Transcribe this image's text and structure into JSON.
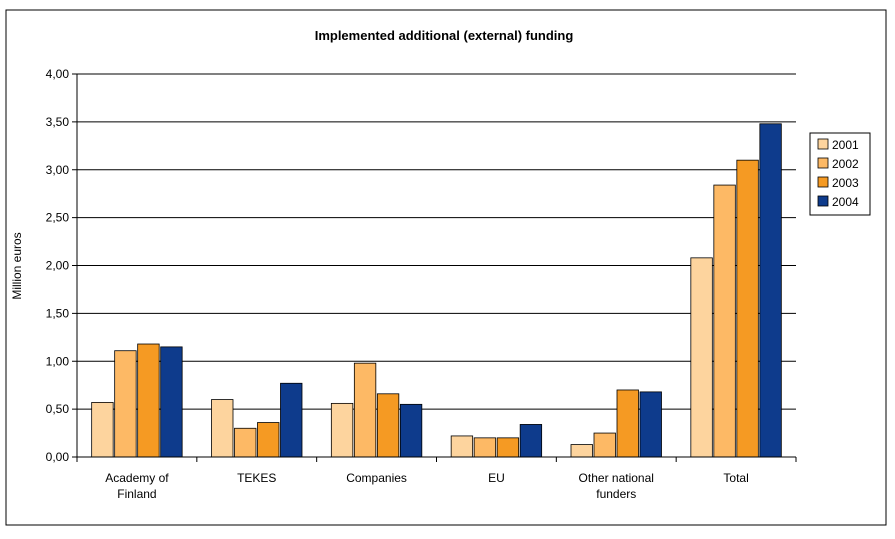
{
  "chart_data": {
    "type": "bar",
    "title": "Implemented additional (external) funding",
    "xlabel": "",
    "ylabel": "Million euros",
    "ylim": [
      0,
      4
    ],
    "yticks": [
      0,
      0.5,
      1,
      1.5,
      2,
      2.5,
      3,
      3.5,
      4
    ],
    "ytick_labels": [
      "0,00",
      "0,50",
      "1,00",
      "1,50",
      "2,00",
      "2,50",
      "3,00",
      "3,50",
      "4,00"
    ],
    "grid": true,
    "legend_position": "right",
    "categories": [
      "Academy of Finland",
      "TEKES",
      "Companies",
      "EU",
      "Other national funders",
      "Total"
    ],
    "category_label_lines": [
      [
        "Academy of",
        "Finland"
      ],
      [
        "TEKES"
      ],
      [
        "Companies"
      ],
      [
        "EU"
      ],
      [
        "Other national",
        "funders"
      ],
      [
        "Total"
      ]
    ],
    "series": [
      {
        "name": "2001",
        "color": "#FDD49E",
        "values": [
          0.57,
          0.6,
          0.56,
          0.22,
          0.13,
          2.08
        ]
      },
      {
        "name": "2002",
        "color": "#FDB965",
        "values": [
          1.11,
          0.3,
          0.98,
          0.2,
          0.25,
          2.84
        ]
      },
      {
        "name": "2003",
        "color": "#F59A23",
        "values": [
          1.18,
          0.36,
          0.66,
          0.2,
          0.7,
          3.1
        ]
      },
      {
        "name": "2004",
        "color": "#0E3B8C",
        "values": [
          1.15,
          0.77,
          0.55,
          0.34,
          0.68,
          3.48
        ]
      }
    ]
  }
}
